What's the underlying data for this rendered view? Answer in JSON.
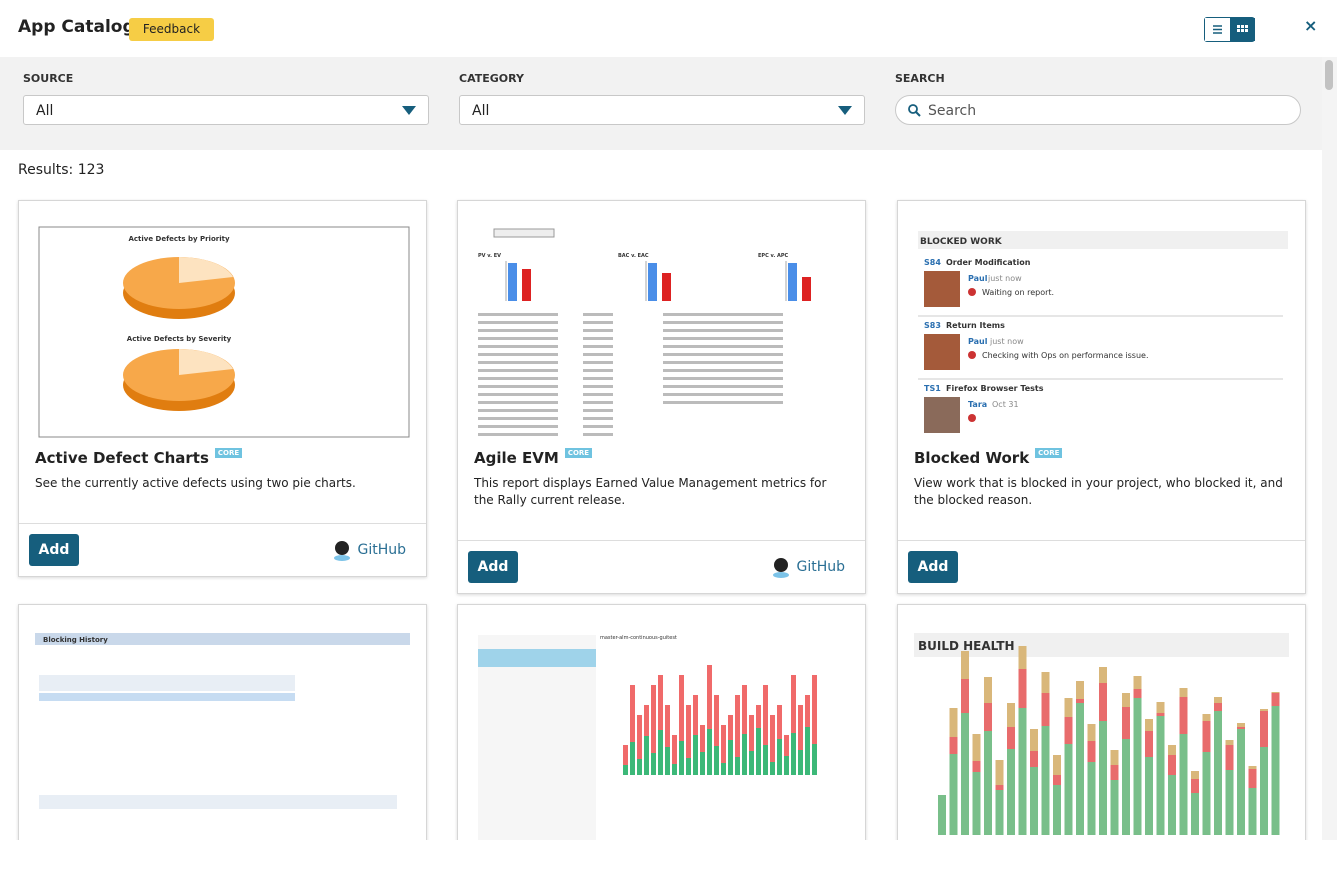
{
  "header": {
    "title": "App Catalog",
    "feedback": "Feedback",
    "close": "×"
  },
  "filters": [
    {
      "label": "SOURCE",
      "value": "All"
    },
    {
      "label": "CATEGORY",
      "value": "All"
    },
    {
      "label": "SEARCH",
      "placeholder": "Search"
    }
  ],
  "results": "Results: 123",
  "cards": [
    {
      "name": "Active Defect Charts",
      "badge": "CORE",
      "description": "See the currently active defects using two pie charts.",
      "add": "Add",
      "source": "GitHub",
      "preview": {
        "titles": [
          "Active Defects by Priority",
          "Active Defects by Severity"
        ]
      }
    },
    {
      "name": "Agile EVM",
      "badge": "CORE",
      "description": "This report displays Earned Value Management metrics for the Rally current release.",
      "add": "Add",
      "source": "GitHub",
      "preview": {
        "titles": [
          "PV v. EV",
          "BAC v. EAC",
          "EPC v. APC"
        ]
      }
    },
    {
      "name": "Blocked Work",
      "badge": "CORE",
      "description": "View work that is blocked in your project, who blocked it, and the blocked reason.",
      "add": "Add",
      "preview": {
        "title": "BLOCKED WORK",
        "items": [
          {
            "id": "S84",
            "name": "Order Modification",
            "user": "Paul",
            "time": "just now",
            "note": "Waiting on report."
          },
          {
            "id": "S83",
            "name": "Return Items",
            "user": "Paul",
            "time": "just now",
            "note": "Checking with Ops on performance issue."
          },
          {
            "id": "TS1",
            "name": "Firefox Browser Tests",
            "user": "Tara",
            "time": "Oct 31"
          }
        ]
      }
    },
    {
      "preview": {
        "title": "Blocking History"
      }
    },
    {
      "preview": {
        "title": "master-alm-continuous-guitest"
      }
    },
    {
      "preview": {
        "title": "BUILD HEALTH"
      }
    }
  ]
}
